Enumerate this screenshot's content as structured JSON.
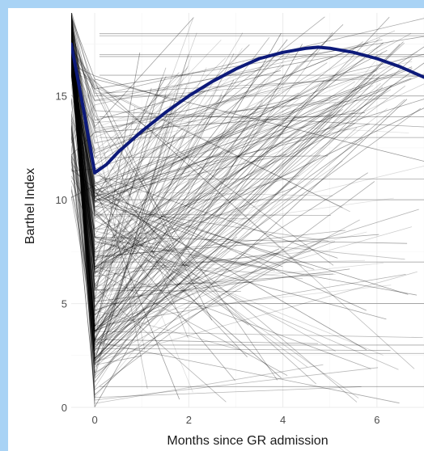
{
  "chart_data": {
    "type": "line",
    "title": "",
    "xlabel": "Months since GR admission",
    "ylabel": "Barthel Index",
    "xlim": [
      -0.5,
      7.0
    ],
    "ylim": [
      0,
      19
    ],
    "x_ticks": [
      0,
      2,
      4,
      6
    ],
    "y_ticks": [
      0,
      5,
      10,
      15
    ],
    "x_tick_labels": [
      "0",
      "2",
      "4",
      "6"
    ],
    "y_tick_labels": [
      "0",
      "5",
      "10",
      "15"
    ],
    "grid": true,
    "legend": "none",
    "series": [
      {
        "role": "individual trajectories",
        "color": "#000000",
        "count": 260
      },
      {
        "role": "mean trajectory",
        "color": "#0d1a7a",
        "x": [
          -0.5,
          -0.25,
          0.0,
          0.25,
          0.5,
          1.0,
          1.5,
          2.0,
          2.5,
          3.0,
          3.5,
          4.0,
          4.5,
          4.75,
          5.0,
          5.5,
          6.0,
          6.5,
          7.0
        ],
        "y": [
          17.5,
          14.5,
          11.3,
          11.7,
          12.3,
          13.3,
          14.2,
          15.0,
          15.7,
          16.3,
          16.8,
          17.1,
          17.3,
          17.35,
          17.3,
          17.1,
          16.8,
          16.4,
          15.9
        ]
      }
    ]
  },
  "colors": {
    "page_border": "#a9d3f5",
    "panel_background": "#ffffff",
    "gridline": "#ebebeb",
    "trajectory": "#000000",
    "mean_line": "#0d1a7a"
  }
}
